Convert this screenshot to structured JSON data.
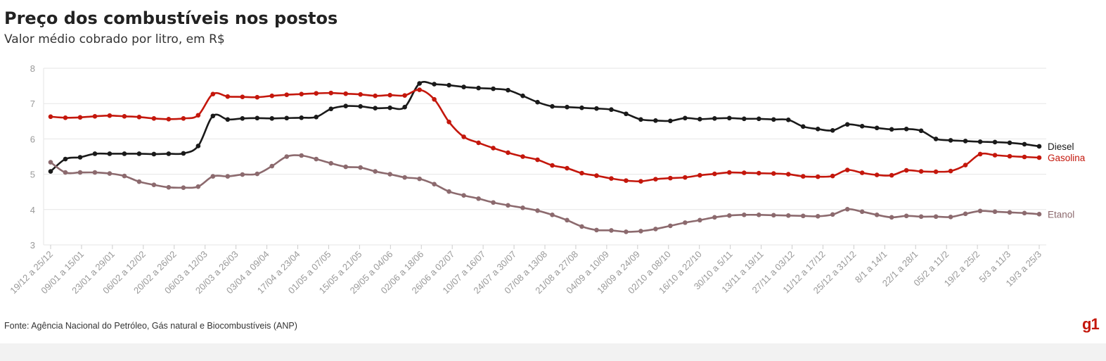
{
  "title": "Preço dos combustíveis nos postos",
  "subtitle": "Valor médio cobrado por litro, em R$",
  "source": "Fonte: Agência Nacional do Petróleo, Gás natural e Biocombustíveis (ANP)",
  "logo": "g1",
  "colors": {
    "diesel": "#1a1a1a",
    "gasolina": "#c4170c",
    "etanol": "#8c6a6e",
    "grid": "#e6e6e6",
    "axis_text": "#999999"
  },
  "chart_data": {
    "type": "line",
    "ylim": [
      3,
      8
    ],
    "yticks": [
      3,
      4,
      5,
      6,
      7,
      8
    ],
    "grid": true,
    "legend": "direct labels at line ends (right)",
    "tick_labels": [
      "19/12 a 25/12",
      "09/01 a 15/01",
      "23/01 a 29/01",
      "06/02 a 12/02",
      "20/02 a 26/02",
      "06/03 a 12/03",
      "20/03 a 26/03",
      "03/04 a 09/04",
      "17/04 a 23/04",
      "01/05 a 07/05",
      "15/05 a 21/05",
      "29/05 a 04/06",
      "02/06 a 18/06",
      "26/06 a 02/07",
      "10/07 a 16/07",
      "24/07 a 30/07",
      "07/08 a 13/08",
      "21/08 a 27/08",
      "04/09 a 10/09",
      "18/09 a 24/09",
      "02/10 a 08/10",
      "16/10 a 22/10",
      "30/10 a 5/11",
      "13/11 a 19/11",
      "27/11 a 03/12",
      "11/12 a 17/12",
      "25/12 a 31/12",
      "8/1 a 14/1",
      "22/1 a 28/1",
      "05/2 a 11/2",
      "19/2 a 25/2",
      "5/3 a 11/3",
      "19/3 a 25/3"
    ],
    "series": [
      {
        "name": "Diesel",
        "values": [
          5.08,
          5.43,
          5.48,
          5.58,
          5.58,
          5.58,
          5.58,
          5.57,
          5.58,
          5.59,
          5.8,
          6.65,
          6.55,
          6.58,
          6.59,
          6.58,
          6.59,
          6.6,
          6.62,
          6.85,
          6.93,
          6.92,
          6.87,
          6.88,
          6.9,
          7.57,
          7.55,
          7.52,
          7.47,
          7.44,
          7.42,
          7.38,
          7.22,
          7.04,
          6.92,
          6.9,
          6.88,
          6.86,
          6.83,
          6.71,
          6.55,
          6.52,
          6.51,
          6.59,
          6.56,
          6.58,
          6.59,
          6.57,
          6.57,
          6.55,
          6.54,
          6.35,
          6.28,
          6.24,
          6.41,
          6.36,
          6.31,
          6.27,
          6.28,
          6.23,
          6.0,
          5.96,
          5.94,
          5.92,
          5.91,
          5.89,
          5.85,
          5.79
        ]
      },
      {
        "name": "Gasolina",
        "values": [
          6.63,
          6.6,
          6.61,
          6.64,
          6.66,
          6.64,
          6.62,
          6.58,
          6.56,
          6.58,
          6.67,
          7.27,
          7.2,
          7.19,
          7.18,
          7.22,
          7.25,
          7.27,
          7.29,
          7.3,
          7.28,
          7.26,
          7.22,
          7.24,
          7.23,
          7.39,
          7.12,
          6.48,
          6.06,
          5.89,
          5.74,
          5.61,
          5.5,
          5.41,
          5.25,
          5.17,
          5.03,
          4.96,
          4.88,
          4.82,
          4.8,
          4.86,
          4.89,
          4.91,
          4.97,
          5.01,
          5.05,
          5.04,
          5.03,
          5.02,
          5.0,
          4.94,
          4.93,
          4.95,
          5.12,
          5.04,
          4.98,
          4.97,
          5.11,
          5.08,
          5.07,
          5.09,
          5.26,
          5.57,
          5.54,
          5.51,
          5.49,
          5.47
        ]
      },
      {
        "name": "Etanol",
        "values": [
          5.34,
          5.05,
          5.05,
          5.05,
          5.02,
          4.95,
          4.79,
          4.7,
          4.63,
          4.62,
          4.65,
          4.94,
          4.94,
          4.99,
          5.01,
          5.23,
          5.5,
          5.53,
          5.43,
          5.31,
          5.21,
          5.19,
          5.08,
          5.0,
          4.91,
          4.87,
          4.72,
          4.51,
          4.4,
          4.31,
          4.2,
          4.12,
          4.05,
          3.97,
          3.85,
          3.7,
          3.52,
          3.42,
          3.41,
          3.37,
          3.39,
          3.45,
          3.54,
          3.63,
          3.7,
          3.78,
          3.83,
          3.85,
          3.85,
          3.84,
          3.83,
          3.82,
          3.81,
          3.86,
          4.01,
          3.94,
          3.85,
          3.78,
          3.82,
          3.8,
          3.8,
          3.79,
          3.88,
          3.96,
          3.94,
          3.92,
          3.9,
          3.87
        ]
      }
    ]
  }
}
